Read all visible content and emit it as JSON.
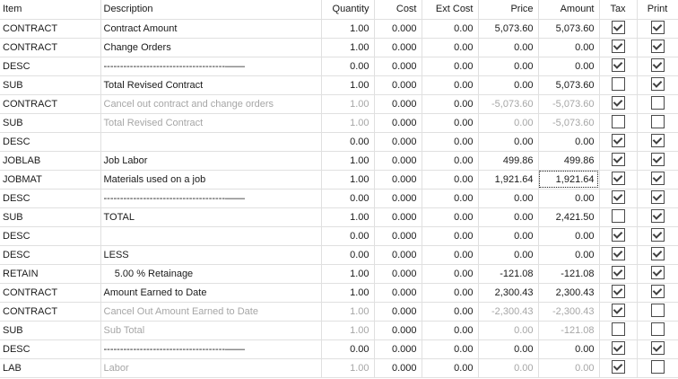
{
  "colors": {
    "background": "#ffffff",
    "grid_line": "#e0e0e0",
    "text": "#1a1a1a",
    "dimmed_text": "#a6a6a6",
    "checkbox_border": "#494949",
    "checkmark": "#404040",
    "focus_outline": "#212121"
  },
  "grid": {
    "headers": [
      "Item",
      "Description",
      "Quantity",
      "Cost",
      "Ext Cost",
      "Price",
      "Amount",
      "Tax",
      "Print"
    ],
    "rows": [
      {
        "item": "CONTRACT",
        "description": "Contract Amount",
        "quantity": "1.00",
        "cost": "0.000",
        "ext_cost": "0.00",
        "price": "5,073.60",
        "amount": "5,073.60",
        "tax_checked": true,
        "print_checked": true,
        "dimmed": false
      },
      {
        "item": "CONTRACT",
        "description": "Change Orders",
        "quantity": "1.00",
        "cost": "0.000",
        "ext_cost": "0.00",
        "price": "0.00",
        "amount": "0.00",
        "tax_checked": true,
        "print_checked": true,
        "dimmed": false
      },
      {
        "item": "DESC",
        "description": "-------------------------------------——",
        "quantity": "0.00",
        "cost": "0.000",
        "ext_cost": "0.00",
        "price": "0.00",
        "amount": "0.00",
        "tax_checked": true,
        "print_checked": true,
        "dimmed": false
      },
      {
        "item": "SUB",
        "description": "Total Revised Contract",
        "quantity": "1.00",
        "cost": "0.000",
        "ext_cost": "0.00",
        "price": "0.00",
        "amount": "5,073.60",
        "tax_checked": false,
        "print_checked": true,
        "dimmed": false
      },
      {
        "item": "CONTRACT",
        "description": "Cancel out contract and change orders",
        "quantity": "1.00",
        "cost": "0.000",
        "ext_cost": "0.00",
        "price": "-5,073.60",
        "amount": "-5,073.60",
        "tax_checked": true,
        "print_checked": false,
        "dimmed": true
      },
      {
        "item": "SUB",
        "description": "Total Revised Contract",
        "quantity": "1.00",
        "cost": "0.000",
        "ext_cost": "0.00",
        "price": "0.00",
        "amount": "-5,073.60",
        "tax_checked": false,
        "print_checked": false,
        "dimmed": true
      },
      {
        "item": "DESC",
        "description": "",
        "quantity": "0.00",
        "cost": "0.000",
        "ext_cost": "0.00",
        "price": "0.00",
        "amount": "0.00",
        "tax_checked": true,
        "print_checked": true,
        "dimmed": false
      },
      {
        "item": "JOBLAB",
        "description": "Job Labor",
        "quantity": "1.00",
        "cost": "0.000",
        "ext_cost": "0.00",
        "price": "499.86",
        "amount": "499.86",
        "tax_checked": true,
        "print_checked": true,
        "dimmed": false
      },
      {
        "item": "JOBMAT",
        "description": "Materials used on a job",
        "quantity": "1.00",
        "cost": "0.000",
        "ext_cost": "0.00",
        "price": "1,921.64",
        "amount": "1,921.64",
        "tax_checked": true,
        "print_checked": true,
        "dimmed": false,
        "focused_cell": "amount"
      },
      {
        "item": "DESC",
        "description": "-------------------------------------——",
        "quantity": "0.00",
        "cost": "0.000",
        "ext_cost": "0.00",
        "price": "0.00",
        "amount": "0.00",
        "tax_checked": true,
        "print_checked": true,
        "dimmed": false
      },
      {
        "item": "SUB",
        "description": "TOTAL",
        "quantity": "1.00",
        "cost": "0.000",
        "ext_cost": "0.00",
        "price": "0.00",
        "amount": "2,421.50",
        "tax_checked": false,
        "print_checked": true,
        "dimmed": false
      },
      {
        "item": "DESC",
        "description": "",
        "quantity": "0.00",
        "cost": "0.000",
        "ext_cost": "0.00",
        "price": "0.00",
        "amount": "0.00",
        "tax_checked": true,
        "print_checked": true,
        "dimmed": false
      },
      {
        "item": "DESC",
        "description": "LESS",
        "quantity": "0.00",
        "cost": "0.000",
        "ext_cost": "0.00",
        "price": "0.00",
        "amount": "0.00",
        "tax_checked": true,
        "print_checked": true,
        "dimmed": false
      },
      {
        "item": "RETAIN",
        "description": "    5.00 % Retainage",
        "quantity": "1.00",
        "cost": "0.000",
        "ext_cost": "0.00",
        "price": "-121.08",
        "amount": "-121.08",
        "tax_checked": true,
        "print_checked": true,
        "dimmed": false
      },
      {
        "item": "CONTRACT",
        "description": "Amount Earned to Date",
        "quantity": "1.00",
        "cost": "0.000",
        "ext_cost": "0.00",
        "price": "2,300.43",
        "amount": "2,300.43",
        "tax_checked": true,
        "print_checked": true,
        "dimmed": false
      },
      {
        "item": "CONTRACT",
        "description": "Cancel Out Amount Earned to Date",
        "quantity": "1.00",
        "cost": "0.000",
        "ext_cost": "0.00",
        "price": "-2,300.43",
        "amount": "-2,300.43",
        "tax_checked": true,
        "print_checked": false,
        "dimmed": true
      },
      {
        "item": "SUB",
        "description": "Sub Total",
        "quantity": "1.00",
        "cost": "0.000",
        "ext_cost": "0.00",
        "price": "0.00",
        "amount": "-121.08",
        "tax_checked": false,
        "print_checked": false,
        "dimmed": true
      },
      {
        "item": "DESC",
        "description": "-------------------------------------——",
        "quantity": "0.00",
        "cost": "0.000",
        "ext_cost": "0.00",
        "price": "0.00",
        "amount": "0.00",
        "tax_checked": true,
        "print_checked": true,
        "dimmed": false
      },
      {
        "item": "LAB",
        "description": "Labor",
        "quantity": "1.00",
        "cost": "0.000",
        "ext_cost": "0.00",
        "price": "0.00",
        "amount": "0.00",
        "tax_checked": true,
        "print_checked": false,
        "dimmed": true
      }
    ]
  }
}
